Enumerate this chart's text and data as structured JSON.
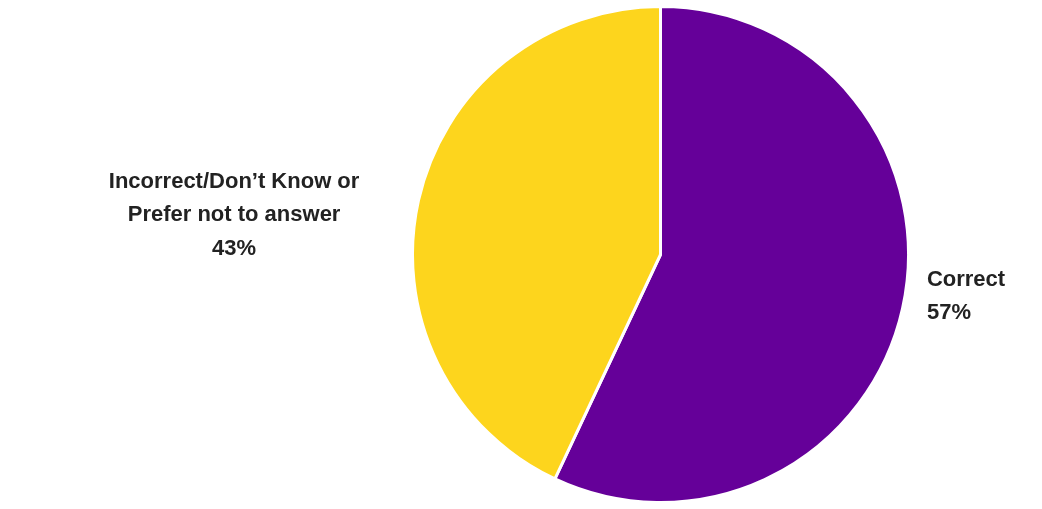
{
  "chart_data": {
    "type": "pie",
    "categories": [
      "Correct",
      "Incorrect/Don’t Know or Prefer not to answer"
    ],
    "values": [
      57,
      43
    ],
    "colors": [
      "#650099",
      "#fdd51d"
    ],
    "value_labels": [
      "57%",
      "43%"
    ]
  }
}
